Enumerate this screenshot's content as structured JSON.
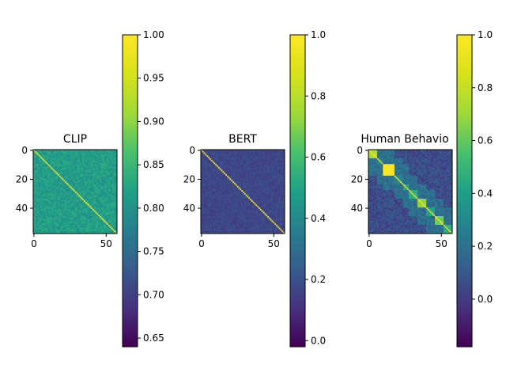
{
  "chart_data": [
    {
      "type": "heatmap",
      "title": "CLIP",
      "n": 58,
      "matrix_kind": "similarity",
      "diagonal_value": 1.0,
      "typical_value": 0.84,
      "value_spread": 0.03,
      "x_ticks": [
        "0",
        "50"
      ],
      "y_ticks": [
        "0",
        "20",
        "40"
      ],
      "colorbar": {
        "min": 0.64,
        "max": 1.0,
        "ticks": [
          "0.65",
          "0.70",
          "0.75",
          "0.80",
          "0.85",
          "0.90",
          "0.95",
          "1.00"
        ]
      },
      "colormap": "viridis"
    },
    {
      "type": "heatmap",
      "title": "BERT",
      "n": 58,
      "matrix_kind": "similarity",
      "diagonal_value": 1.0,
      "typical_value": 0.2,
      "value_spread": 0.05,
      "x_ticks": [
        "0",
        "50"
      ],
      "y_ticks": [
        "0",
        "20",
        "40"
      ],
      "colorbar": {
        "min": -0.02,
        "max": 1.0,
        "ticks": [
          "0.0",
          "0.2",
          "0.4",
          "0.6",
          "0.8",
          "1.0"
        ]
      },
      "colormap": "viridis"
    },
    {
      "type": "heatmap",
      "title": "Human Behavio",
      "n": 58,
      "matrix_kind": "block-similarity",
      "diagonal_value": 1.0,
      "typical_value": 0.1,
      "value_spread": 0.1,
      "x_ticks": [
        "0",
        "50"
      ],
      "y_ticks": [
        "0",
        "20",
        "40"
      ],
      "colorbar": {
        "min": -0.18,
        "max": 1.0,
        "ticks": [
          "0.0",
          "0.2",
          "0.4",
          "0.6",
          "0.8",
          "1.0"
        ]
      },
      "colormap": "viridis"
    }
  ]
}
